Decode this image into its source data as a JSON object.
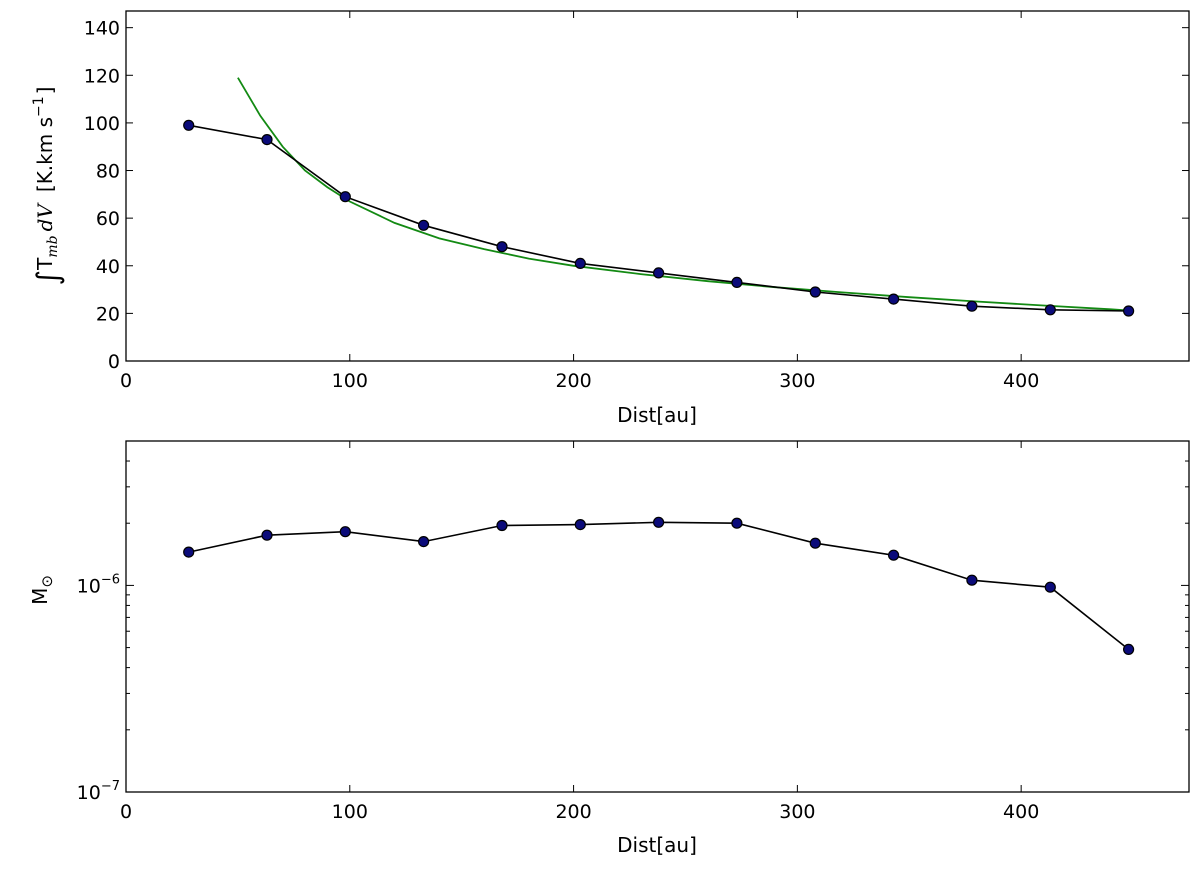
{
  "chart_data": [
    {
      "type": "line",
      "xlabel": "Dist[au]",
      "ylabel": "∫T_mb dV  [K.km s⁻¹]",
      "ylabel_parts": {
        "integral": "∫",
        "t": "T",
        "t_sub": "mb",
        "dv": "dV",
        "unit": "[K.km s",
        "unit_exp": "−1",
        "unit_close": "]"
      },
      "xlim": [
        0,
        475
      ],
      "ylim": [
        0,
        147
      ],
      "xticks": [
        0,
        100,
        200,
        300,
        400
      ],
      "yticks": [
        0,
        20,
        40,
        60,
        80,
        100,
        120,
        140
      ],
      "grid": false,
      "series": [
        {
          "kind": "data",
          "color": "#000000",
          "marker_color": "#0b0b7a",
          "x": [
            28,
            63,
            98,
            133,
            168,
            203,
            238,
            273,
            308,
            343,
            378,
            413,
            448
          ],
          "y": [
            99,
            93,
            69,
            57,
            48,
            41,
            37,
            33,
            29,
            26,
            23,
            21.5,
            21
          ]
        },
        {
          "kind": "fit",
          "color": "#138a13",
          "x": [
            50,
            60,
            70,
            80,
            90,
            100,
            120,
            140,
            160,
            180,
            200,
            230,
            260,
            290,
            320,
            350,
            380,
            410,
            440,
            448
          ],
          "y": [
            119,
            103,
            90,
            80,
            73,
            67,
            58,
            51.5,
            47,
            43,
            40,
            36.5,
            33.5,
            31,
            28.8,
            26.8,
            25,
            23.3,
            21.7,
            21.2
          ]
        }
      ]
    },
    {
      "type": "line",
      "xlabel": "Dist[au]",
      "ylabel": "M⊙",
      "ylabel_parts": {
        "m": "M",
        "sub": "⊙"
      },
      "yscale": "log",
      "xlim": [
        0,
        475
      ],
      "ylim": [
        1e-07,
        5e-06
      ],
      "xticks": [
        0,
        100,
        200,
        300,
        400
      ],
      "yticks": [
        {
          "value": 1e-07,
          "base": "10",
          "exp": "−7"
        },
        {
          "value": 1e-06,
          "base": "10",
          "exp": "−6"
        }
      ],
      "grid": false,
      "series": [
        {
          "kind": "data",
          "color": "#000000",
          "marker_color": "#0b0b7a",
          "x": [
            28,
            63,
            98,
            133,
            168,
            203,
            238,
            273,
            308,
            343,
            378,
            413,
            448
          ],
          "y": [
            1.45e-06,
            1.75e-06,
            1.82e-06,
            1.63e-06,
            1.95e-06,
            1.97e-06,
            2.02e-06,
            2e-06,
            1.6e-06,
            1.4e-06,
            1.06e-06,
            9.8e-07,
            4.9e-07
          ]
        }
      ]
    }
  ]
}
